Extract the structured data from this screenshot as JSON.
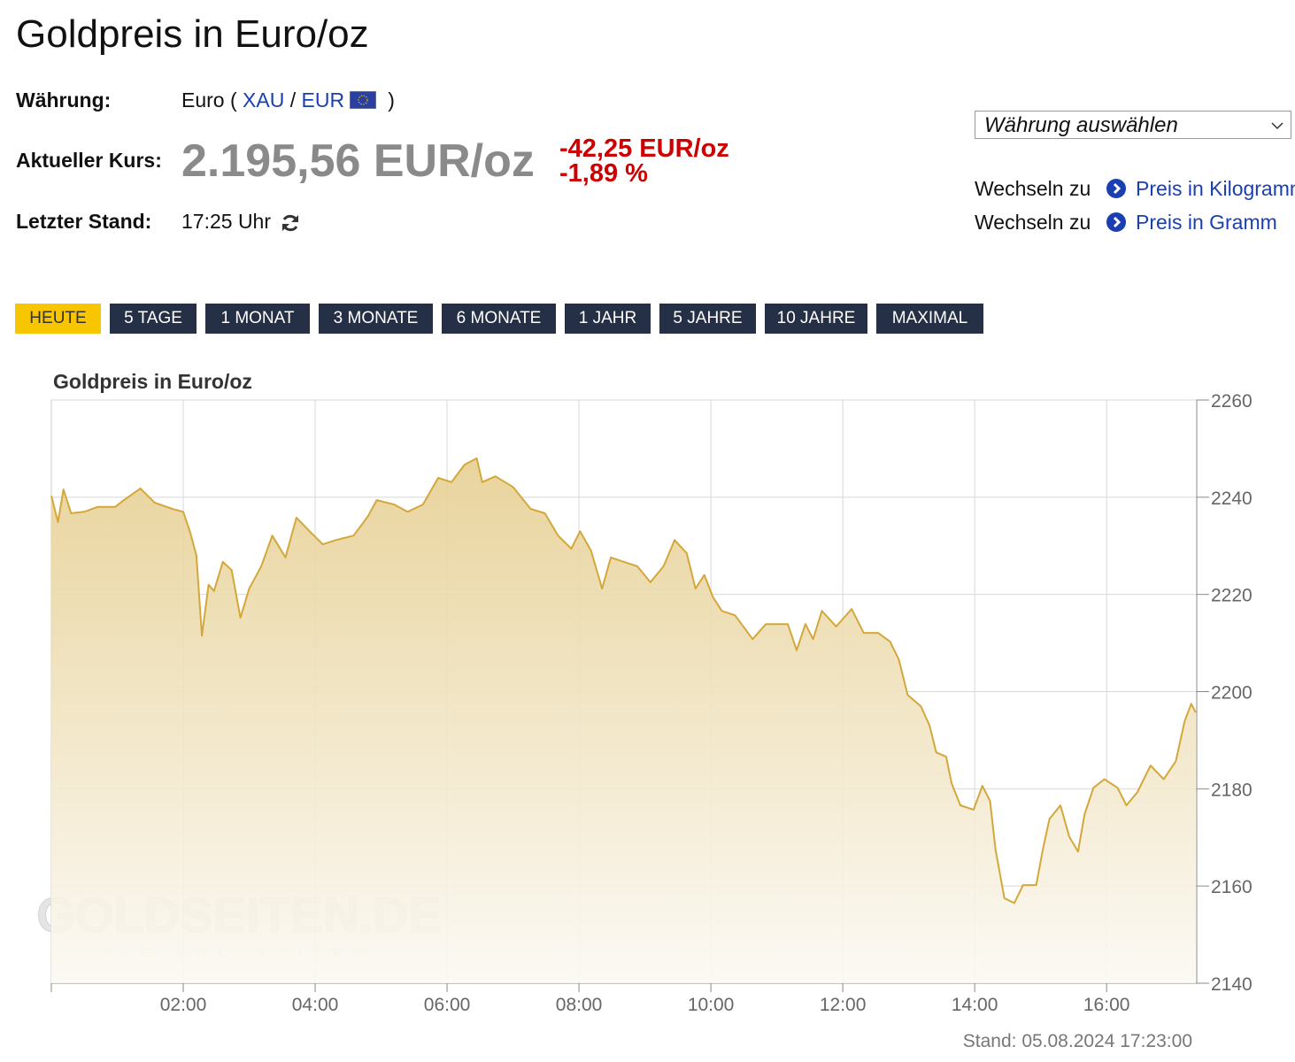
{
  "header": {
    "title": "Goldpreis in Euro/oz"
  },
  "info": {
    "currency_label": "Währung:",
    "currency_name": "Euro (",
    "currency_base": "XAU",
    "currency_sep": "/",
    "currency_quote": "EUR",
    "currency_close": ")",
    "price_label": "Aktueller Kurs:",
    "price": "2.195,56 EUR/oz",
    "change_abs": "-42,25 EUR/oz",
    "change_pct": "-1,89 %",
    "updated_label": "Letzter Stand:",
    "updated": "17:25 Uhr"
  },
  "side": {
    "select": "Währung auswählen",
    "links": [
      {
        "prefix": "Wechseln zu",
        "label": "Preis in Kilogramm"
      },
      {
        "prefix": "Wechseln zu",
        "label": "Preis in Gramm"
      }
    ]
  },
  "tabs": [
    "HEUTE",
    "5 TAGE",
    "1 MONAT",
    "3 MONATE",
    "6 MONATE",
    "1 JAHR",
    "5 JAHRE",
    "10 JAHRE",
    "MAXIMAL"
  ],
  "chart_data": {
    "type": "area",
    "title": "Goldpreis in Euro/oz",
    "color": "#d4a73a",
    "grid": true,
    "watermark": "GOLDSEITEN.DE",
    "watermark_sub": "DIE-GOLDSEITEN",
    "footer": "Stand: 05.08.2024 17:23:00",
    "xlim": [
      "00:00",
      "17:22"
    ],
    "xticks": [
      "02:00",
      "04:00",
      "06:00",
      "08:00",
      "10:00",
      "12:00",
      "14:00",
      "16:00"
    ],
    "ylim": [
      2140,
      2260
    ],
    "yticks": [
      2140,
      2160,
      2180,
      2200,
      2220,
      2240,
      2260
    ],
    "x": [
      "00:00",
      "00:06",
      "00:11",
      "00:18",
      "00:30",
      "00:42",
      "00:58",
      "01:06",
      "01:21",
      "01:34",
      "01:50",
      "02:00",
      "02:06",
      "02:12",
      "02:17",
      "02:23",
      "02:28",
      "02:36",
      "02:44",
      "02:52",
      "03:00",
      "03:11",
      "03:21",
      "03:33",
      "03:43",
      "03:55",
      "04:07",
      "04:19",
      "04:35",
      "04:48",
      "04:56",
      "05:12",
      "05:24",
      "05:38",
      "05:52",
      "06:04",
      "06:16",
      "06:27",
      "06:32",
      "06:44",
      "07:00",
      "07:16",
      "07:29",
      "07:41",
      "07:53",
      "08:01",
      "08:11",
      "08:21",
      "08:29",
      "08:41",
      "08:53",
      "09:05",
      "09:17",
      "09:27",
      "09:38",
      "09:46",
      "09:54",
      "10:02",
      "10:10",
      "10:22",
      "10:38",
      "10:50",
      "11:10",
      "11:18",
      "11:26",
      "11:33",
      "11:41",
      "11:54",
      "12:08",
      "12:19",
      "12:32",
      "12:43",
      "12:51",
      "12:59",
      "13:11",
      "13:19",
      "13:25",
      "13:34",
      "13:39",
      "13:47",
      "13:59",
      "14:07",
      "14:14",
      "14:19",
      "14:27",
      "14:36",
      "14:44",
      "14:56",
      "15:02",
      "15:08",
      "15:18",
      "15:26",
      "15:34",
      "15:40",
      "15:48",
      "15:58",
      "16:10",
      "16:18",
      "16:28",
      "16:40",
      "16:52",
      "17:03",
      "17:11",
      "17:17",
      "17:21"
    ],
    "values": [
      2240.3,
      2234.9,
      2241.6,
      2236.7,
      2237,
      2238,
      2238,
      2239.4,
      2241.8,
      2238.9,
      2237.6,
      2237,
      2233,
      2228,
      2211.5,
      2222,
      2220.7,
      2226.7,
      2225,
      2215.2,
      2221.2,
      2225.8,
      2232.1,
      2227.6,
      2235.8,
      2233,
      2230.3,
      2231.2,
      2232.1,
      2236.1,
      2239.4,
      2238.5,
      2237,
      2238.5,
      2244,
      2243.1,
      2246.7,
      2248,
      2243.1,
      2244.3,
      2242.1,
      2237.6,
      2236.7,
      2232.1,
      2229.4,
      2233,
      2229,
      2221.2,
      2227.6,
      2226.7,
      2225.8,
      2222.5,
      2225.8,
      2231.2,
      2228.5,
      2221.2,
      2224,
      2219.4,
      2216.6,
      2215.7,
      2210.8,
      2213.9,
      2213.9,
      2208.5,
      2213.9,
      2210.8,
      2216.6,
      2213.4,
      2217,
      2212.1,
      2212.1,
      2210.3,
      2206.6,
      2199.3,
      2197,
      2193,
      2187.5,
      2186.6,
      2181.1,
      2176.6,
      2175.7,
      2180.6,
      2177.5,
      2167.5,
      2157.5,
      2156.5,
      2160.2,
      2160.2,
      2167.5,
      2173.8,
      2176.6,
      2170.2,
      2167.1,
      2174.8,
      2180.2,
      2182,
      2180.2,
      2176.6,
      2179.3,
      2184.8,
      2182,
      2185.7,
      2193.9,
      2197.5,
      2195.7
    ]
  }
}
